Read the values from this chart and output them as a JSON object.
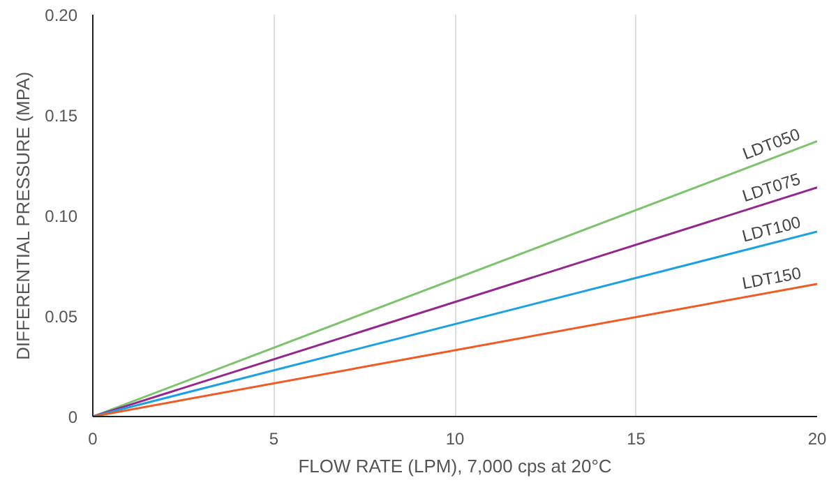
{
  "chart_data": {
    "type": "line",
    "xlabel": "FLOW RATE (LPM), 7,000 cps at 20°C",
    "ylabel": "DIFFERENTIAL PRESSURE (MPA)",
    "x": [
      0,
      20
    ],
    "series": [
      {
        "name": "LDT050",
        "color": "#7dc36b",
        "values": [
          0,
          0.137
        ]
      },
      {
        "name": "LDT075",
        "color": "#93278f",
        "values": [
          0,
          0.114
        ]
      },
      {
        "name": "LDT100",
        "color": "#1ba1e2",
        "values": [
          0,
          0.092
        ]
      },
      {
        "name": "LDT150",
        "color": "#f15a22",
        "values": [
          0,
          0.066
        ]
      }
    ],
    "xlim": [
      0,
      20
    ],
    "ylim": [
      0,
      0.2
    ],
    "xticks": [
      0,
      5,
      10,
      15,
      20
    ],
    "yticks": [
      0,
      0.05,
      {
        "value": 0.1,
        "label": "0.10"
      },
      0.15,
      {
        "value": 0.2,
        "label": "0.20"
      }
    ],
    "grid": "x",
    "legend": false,
    "marker": "none",
    "line_style": "solid"
  }
}
